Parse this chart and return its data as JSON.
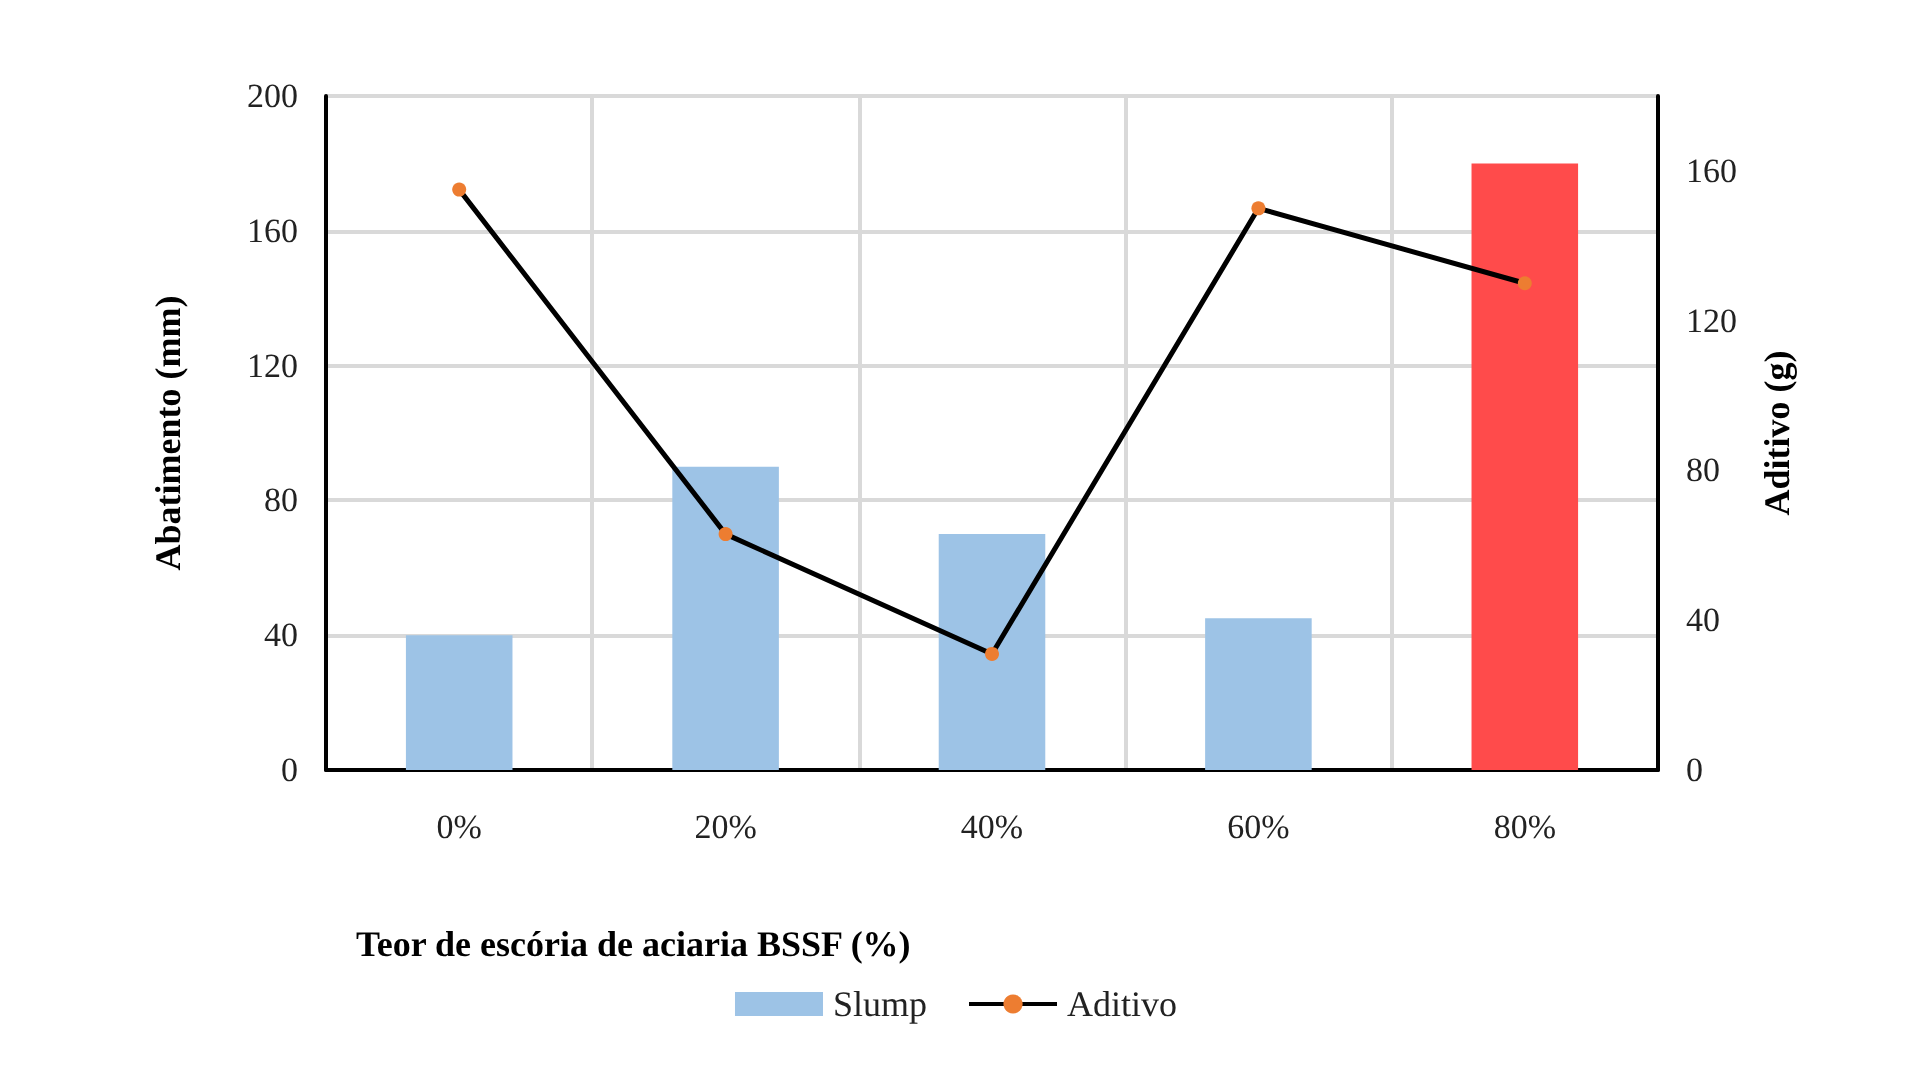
{
  "chart_data": {
    "type": "bar",
    "xlabel": "Teor de escória de aciaria BSSF (%)",
    "ylabel": "Abatimento (mm)",
    "y2label": "Aditivo (g)",
    "categories": [
      "0%",
      "20%",
      "40%",
      "60%",
      "80%"
    ],
    "series": [
      {
        "name": "Slump",
        "color": "#9dc3e6",
        "colors": [
          "#9dc3e6",
          "#9dc3e6",
          "#9dc3e6",
          "#9dc3e6",
          "#ff4b4b"
        ],
        "values": [
          40,
          90,
          70,
          45,
          180
        ]
      },
      {
        "name": "Aditivo",
        "type": "line",
        "axis": "y2",
        "color": "#000000",
        "colors": [
          "#ed7d31",
          "#ed7d31",
          "#ed7d31",
          "#ed7d31",
          "#ed7d31"
        ],
        "values": [
          155,
          63,
          31,
          150,
          130
        ]
      }
    ],
    "ylim": [
      0,
      200
    ],
    "yticks": [
      0,
      40,
      80,
      120,
      160,
      200
    ],
    "y2lim": [
      0,
      180
    ],
    "y2ticks": [
      0,
      40,
      80,
      120,
      160
    ],
    "grid": true,
    "legend": "bottom",
    "marker": "circle",
    "line_style": "solid"
  }
}
